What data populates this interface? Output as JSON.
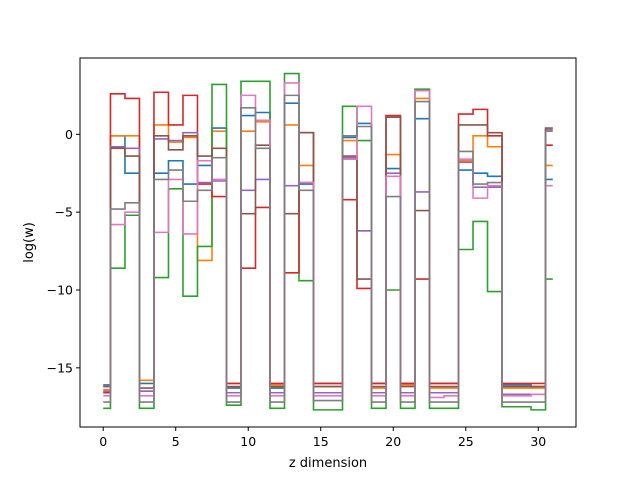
{
  "chart_data": {
    "type": "line",
    "drawstyle": "steps",
    "title": "",
    "xlabel": "z dimension",
    "ylabel": "log(w)",
    "xlim": [
      -1.6,
      32.6
    ],
    "ylim": [
      -18.8,
      4.9
    ],
    "xticks": [
      0,
      5,
      10,
      15,
      20,
      25,
      30
    ],
    "yticks": [
      -15,
      -10,
      -5,
      0
    ],
    "grid": false,
    "legend": "none",
    "series": [
      {
        "color": "#1f77b4",
        "values": [
          -16.1,
          -0.1,
          -2.5,
          -16.0,
          -2.5,
          -1.7,
          -3.2,
          -2.0,
          0.4,
          -16.3,
          1.2,
          1.4,
          -16.3,
          2.0,
          -3.2,
          -16.0,
          -16.0,
          -0.2,
          0.7,
          -16.0,
          -2.2,
          -16.0,
          1.0,
          -16.0,
          -16.0,
          -2.3,
          -2.5,
          -2.7,
          -16.1,
          -16.1,
          -16.2,
          -2.9
        ]
      },
      {
        "color": "#ff7f0e",
        "values": [
          -16.4,
          -0.1,
          -0.1,
          -15.8,
          0.6,
          -0.5,
          -0.2,
          -8.1,
          0.2,
          -16.0,
          0.2,
          0.8,
          -16.1,
          0.6,
          -2.0,
          -16.2,
          -16.2,
          -0.4,
          -6.2,
          -16.3,
          -1.3,
          -16.1,
          2.3,
          -16.3,
          -16.3,
          -1.7,
          -0.1,
          -0.8,
          -16.3,
          -16.3,
          -16.3,
          -2.0
        ]
      },
      {
        "color": "#2ca02c",
        "values": [
          -17.6,
          -8.6,
          -5.2,
          -17.6,
          -9.2,
          -3.5,
          -10.4,
          -7.2,
          3.2,
          -17.4,
          3.4,
          3.4,
          -17.6,
          3.9,
          -9.4,
          -17.7,
          -17.7,
          1.8,
          -0.4,
          -17.6,
          -10.0,
          -17.6,
          2.9,
          -17.6,
          -17.6,
          -7.4,
          -5.6,
          -10.1,
          -17.5,
          -17.5,
          -17.7,
          -9.3
        ]
      },
      {
        "color": "#d62728",
        "values": [
          -16.6,
          2.6,
          2.3,
          -16.5,
          2.7,
          0.6,
          2.5,
          -3.2,
          -4.0,
          -16.0,
          -8.6,
          -4.7,
          -16.0,
          -8.9,
          0.1,
          -16.0,
          -16.0,
          -4.2,
          -9.9,
          -16.0,
          1.2,
          -16.0,
          -9.3,
          -16.0,
          -16.0,
          1.3,
          1.6,
          -0.1,
          -16.0,
          -16.0,
          -16.0,
          -0.7
        ]
      },
      {
        "color": "#9467bd",
        "values": [
          -16.5,
          -0.8,
          -0.9,
          -16.5,
          -0.3,
          -0.4,
          0.1,
          -3.1,
          -3.0,
          -16.6,
          -3.6,
          -2.9,
          -16.6,
          -3.3,
          -3.1,
          -16.6,
          -16.6,
          -1.5,
          -6.2,
          -16.6,
          -2.5,
          -16.6,
          -3.7,
          -16.6,
          -16.6,
          -1.8,
          -3.4,
          -3.4,
          -16.7,
          -16.7,
          -16.7,
          0.3
        ]
      },
      {
        "color": "#8c564b",
        "values": [
          -16.2,
          -0.9,
          -1.4,
          -16.3,
          -0.1,
          -1.0,
          -0.1,
          -1.4,
          -0.9,
          -16.2,
          -5.1,
          -0.7,
          -16.2,
          -5.1,
          0.1,
          -16.2,
          -16.2,
          -1.4,
          -9.3,
          -16.2,
          1.1,
          -16.2,
          -4.9,
          -16.2,
          -16.2,
          0.6,
          0.6,
          0.1,
          -16.2,
          -16.2,
          -16.2,
          0.4
        ]
      },
      {
        "color": "#e377c2",
        "values": [
          -16.8,
          -5.8,
          -5.0,
          -16.8,
          -6.3,
          -2.9,
          -6.4,
          -1.7,
          -2.9,
          -16.8,
          2.5,
          0.9,
          -16.8,
          3.3,
          -3.1,
          -16.8,
          -16.8,
          -1.6,
          1.8,
          -16.8,
          -2.7,
          -16.8,
          2.8,
          -16.9,
          -16.8,
          -1.6,
          -4.1,
          -3.3,
          -16.8,
          -16.8,
          -16.7,
          -3.3
        ]
      },
      {
        "color": "#7f7f7f",
        "values": [
          -17.2,
          -4.8,
          -4.4,
          -17.2,
          -2.9,
          -2.3,
          -4.3,
          -3.6,
          -1.5,
          -17.2,
          1.7,
          -0.9,
          -17.2,
          2.5,
          -3.6,
          -17.1,
          -17.1,
          -0.1,
          0.5,
          -17.2,
          -4.0,
          -17.2,
          2.1,
          -17.2,
          -17.2,
          -1.1,
          -3.2,
          -3.1,
          -17.2,
          -17.2,
          -17.2,
          0.2
        ]
      }
    ]
  }
}
